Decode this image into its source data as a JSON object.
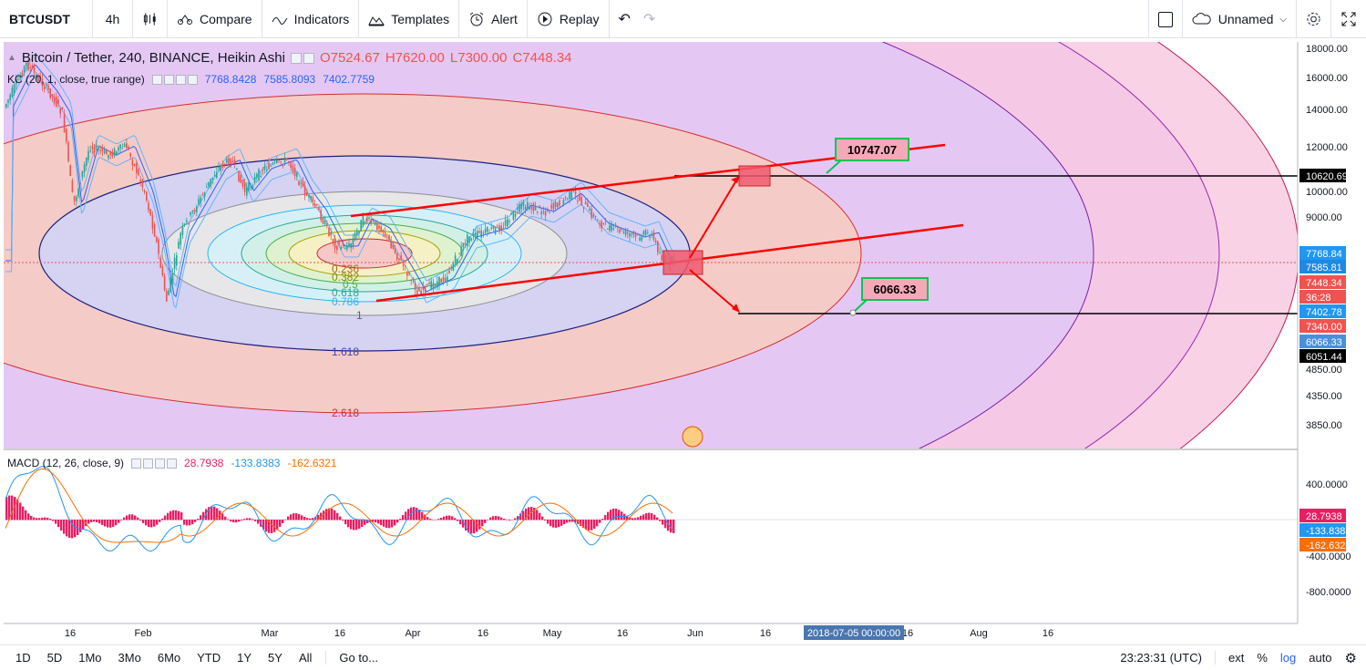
{
  "toolbar": {
    "symbol": "BTCUSDT",
    "interval": "4h",
    "compare": "Compare",
    "indicators": "Indicators",
    "templates": "Templates",
    "alert": "Alert",
    "replay": "Replay",
    "layout_name": "Unnamed"
  },
  "legend": {
    "title": "Bitcoin / Tether, 240, BINANCE, Heikin Ashi",
    "open": "O7524.67",
    "high": "H7620.00",
    "low": "L7300.00",
    "close": "C7448.34"
  },
  "kc": {
    "label": "KC (20, 1, close, true range)",
    "v1": "7768.8428",
    "v2": "7585.8093",
    "v3": "7402.7759"
  },
  "macd": {
    "label": "MACD (12, 26, close, 9)",
    "v1": "28.7938",
    "v2": "-133.8383",
    "v3": "-162.6321"
  },
  "price_axis": [
    "18000.00",
    "16000.00",
    "14000.00",
    "12000.00",
    "10000.00",
    "9000.00",
    "4850.00",
    "4350.00",
    "3850.00"
  ],
  "price_badges": [
    {
      "text": "10620.69",
      "bg": "#000000"
    },
    {
      "text": "7768.84",
      "bg": "#2196f3"
    },
    {
      "text": "7585.81",
      "bg": "#1e88e5"
    },
    {
      "text": "7448.34",
      "bg": "#ef5350"
    },
    {
      "text": "36:28",
      "bg": "#ef5350"
    },
    {
      "text": "7402.78",
      "bg": "#2196f3"
    },
    {
      "text": "7340.00",
      "bg": "#ef5350"
    },
    {
      "text": "6066.33",
      "bg": "#4a90d9"
    },
    {
      "text": "6051.44",
      "bg": "#000000"
    }
  ],
  "macd_axis": [
    "400.0000",
    "-400.0000",
    "-800.0000"
  ],
  "macd_badges": [
    {
      "text": "28.7938",
      "bg": "#e91e63"
    },
    {
      "text": "-133.8383",
      "bg": "#2196f3"
    },
    {
      "text": "-162.6321",
      "bg": "#ff6d00"
    }
  ],
  "time_axis": [
    "16",
    "Feb",
    "Mar",
    "16",
    "Apr",
    "16",
    "May",
    "16",
    "Jun",
    "16",
    "16",
    "Aug",
    "16"
  ],
  "crosshair_time": "2018-07-05 00:00:00",
  "fib_labels": [
    "0.236",
    "0.382",
    "0.5",
    "0.618",
    "0.786",
    "1",
    "1.618",
    "2.618"
  ],
  "callouts": {
    "top": "10747.07",
    "bottom": "6066.33"
  },
  "timeframes": [
    "1D",
    "5D",
    "1Mo",
    "3Mo",
    "6Mo",
    "YTD",
    "1Y",
    "5Y",
    "All"
  ],
  "goto": "Go to...",
  "clock": "23:23:31 (UTC)",
  "scale_opts": {
    "ext": "ext",
    "pct": "%",
    "log": "log",
    "auto": "auto"
  },
  "colors": {
    "accent": "#2962ff",
    "up": "#26a69a",
    "down": "#ef5350"
  }
}
